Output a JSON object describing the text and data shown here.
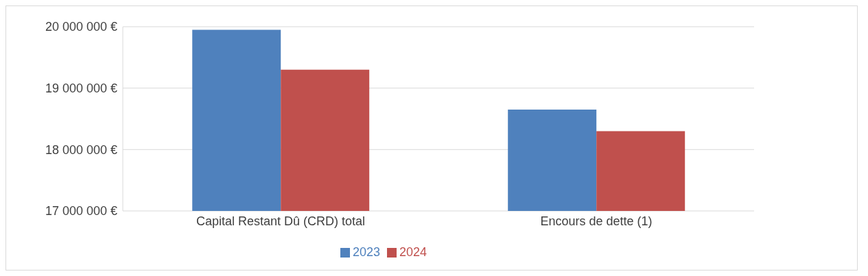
{
  "chart_data": {
    "type": "bar",
    "categories": [
      "Capital Restant Dû (CRD) total",
      "Encours de dette (1)"
    ],
    "series": [
      {
        "name": "2023",
        "color": "#4f81bd",
        "values": [
          19950000,
          18650000
        ]
      },
      {
        "name": "2024",
        "color": "#c0504d",
        "values": [
          19300000,
          18300000
        ]
      }
    ],
    "ylim": [
      17000000,
      20000000
    ],
    "yticks": [
      {
        "value": 17000000,
        "label": "17 000 000 €"
      },
      {
        "value": 18000000,
        "label": "18 000 000 €"
      },
      {
        "value": 19000000,
        "label": "19 000 000 €"
      },
      {
        "value": 20000000,
        "label": "20 000 000 €"
      }
    ],
    "grid": "y",
    "legend": "bottom"
  }
}
